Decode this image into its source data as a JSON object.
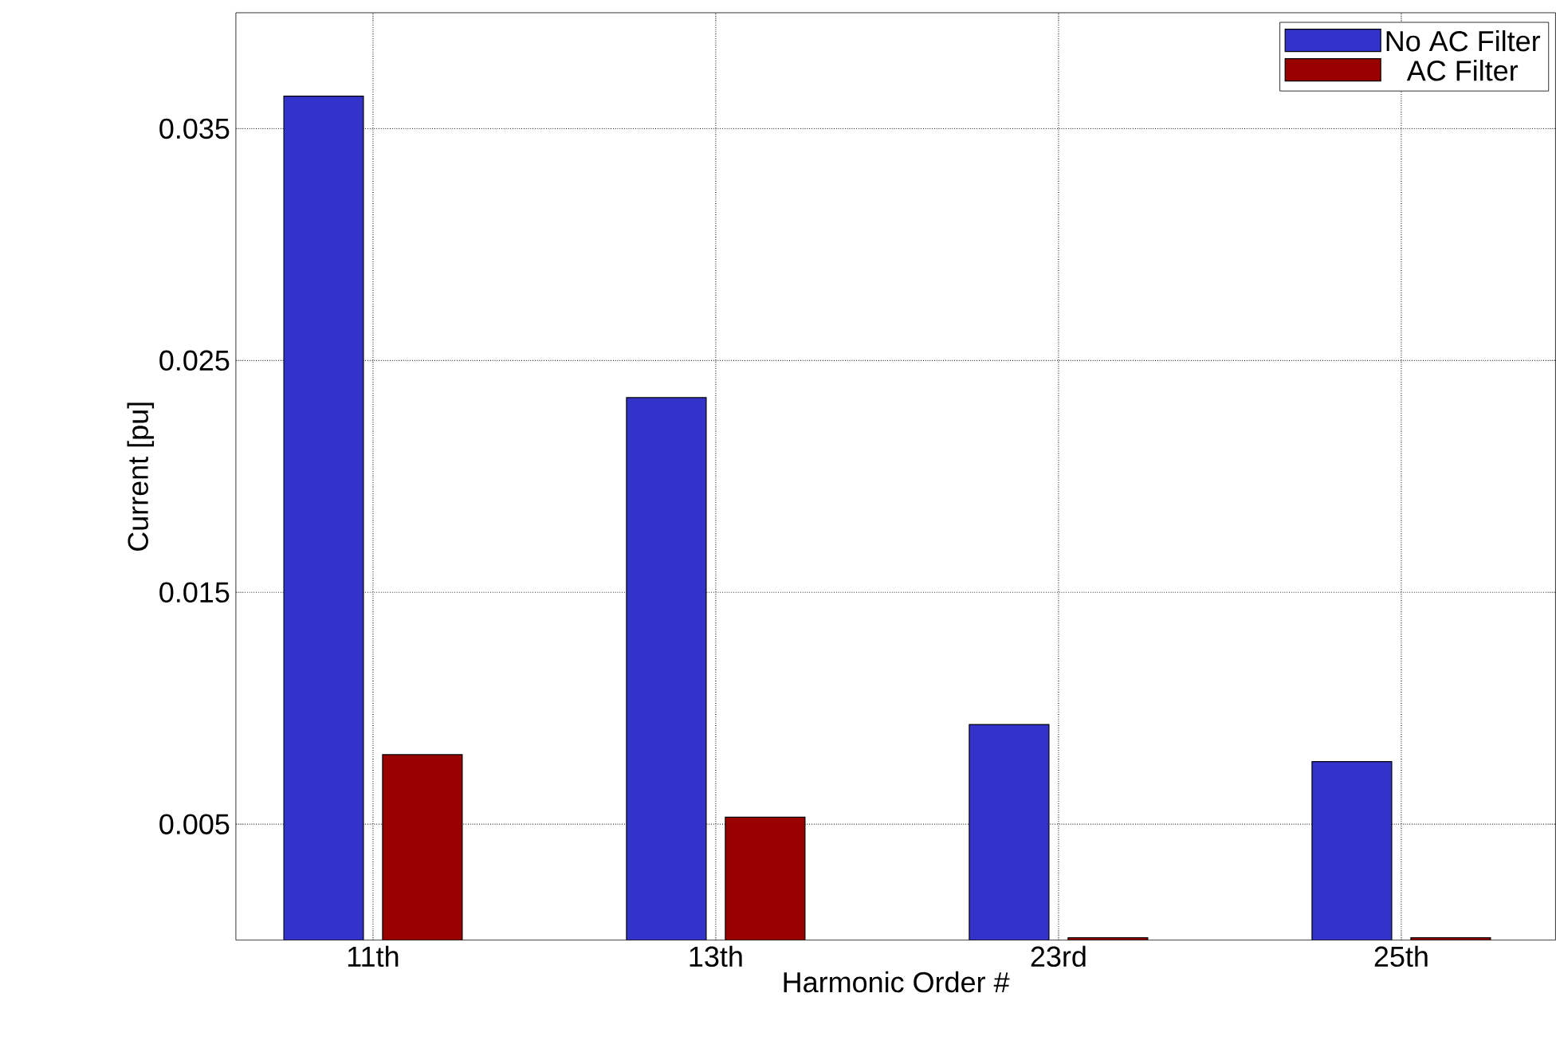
{
  "chart_data": {
    "type": "bar",
    "xlabel": "Harmonic Order #",
    "ylabel": "Current  [pu]",
    "categories": [
      "11th",
      "13th",
      "23rd",
      "25th"
    ],
    "series": [
      {
        "name": "No AC Filter",
        "color": "#3333cc",
        "values": [
          0.0364,
          0.0234,
          0.0093,
          0.0077
        ]
      },
      {
        "name": "AC Filter",
        "color": "#990000",
        "values": [
          0.008,
          0.0053,
          0.0001,
          0.0001
        ]
      }
    ],
    "ylim": [
      0,
      0.04
    ],
    "yticks": [
      0.005,
      0.015,
      0.025,
      0.035
    ],
    "grid": true,
    "legend": "top right"
  }
}
